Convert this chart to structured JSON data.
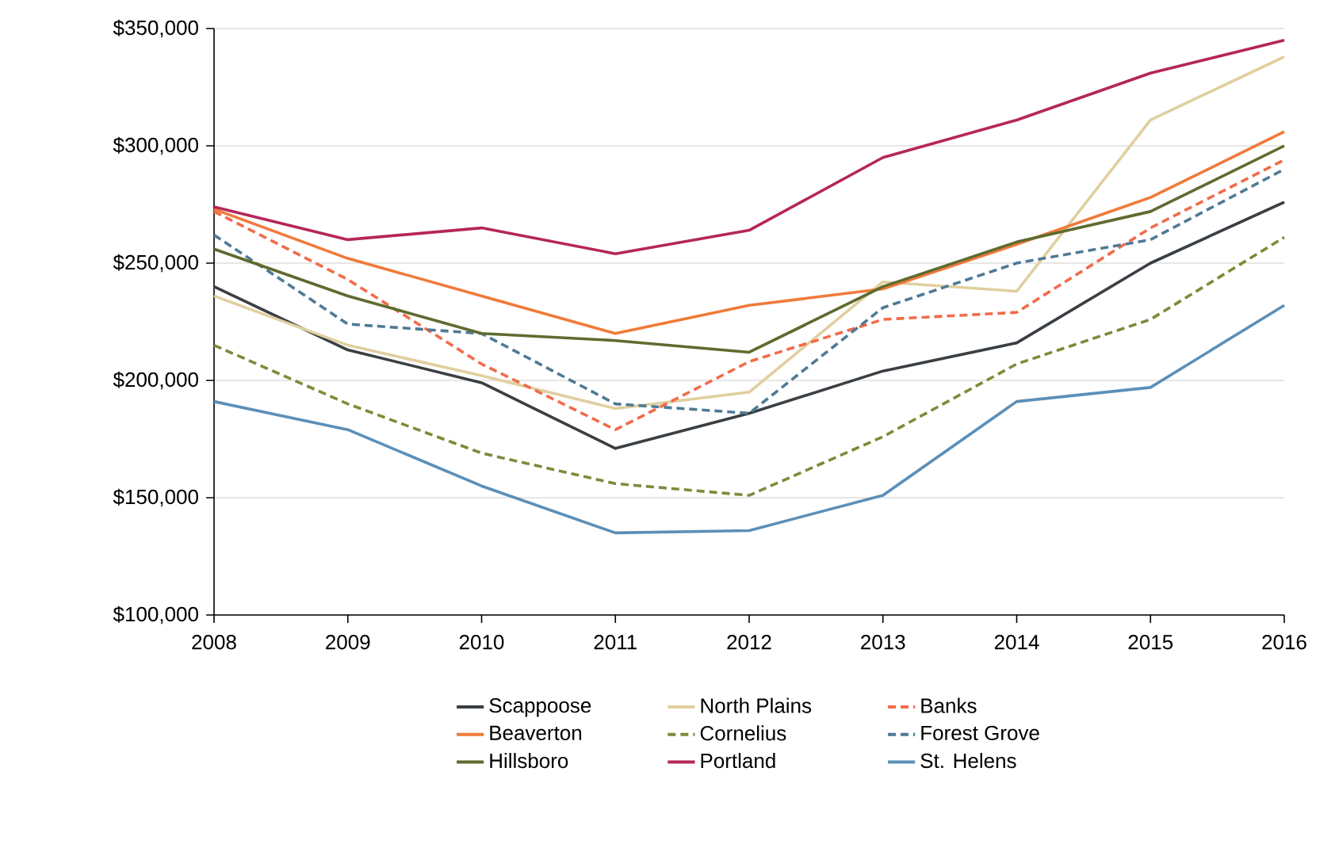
{
  "chart_data": {
    "type": "line",
    "x": [
      2008,
      2009,
      2010,
      2011,
      2012,
      2013,
      2014,
      2015,
      2016
    ],
    "xlim": [
      2008,
      2016
    ],
    "xticks": [
      2008,
      2009,
      2010,
      2011,
      2012,
      2013,
      2014,
      2015,
      2016
    ],
    "ylim": [
      100000,
      350000
    ],
    "yticks": [
      {
        "value": 100000,
        "label": "$100,000"
      },
      {
        "value": 150000,
        "label": "$150,000"
      },
      {
        "value": 200000,
        "label": "$200,000"
      },
      {
        "value": 250000,
        "label": "$250,000"
      },
      {
        "value": 300000,
        "label": "$300,000"
      },
      {
        "value": 350000,
        "label": "$350,000"
      }
    ],
    "grid": "y",
    "legend": "bottom",
    "marker": "none",
    "series": [
      {
        "name": "Scappoose",
        "color": "#3a3f44",
        "line_style": "solid",
        "values": [
          240000,
          213000,
          199000,
          171000,
          186000,
          204000,
          216000,
          250000,
          276000
        ]
      },
      {
        "name": "North Plains",
        "color": "#e0cf9f",
        "line_style": "solid",
        "values": [
          236000,
          215000,
          202000,
          188000,
          195000,
          242000,
          238000,
          311000,
          338000
        ]
      },
      {
        "name": "Banks",
        "color": "#f26b4a",
        "line_style": "dashed",
        "values": [
          272000,
          243000,
          207000,
          179000,
          208000,
          226000,
          229000,
          265000,
          294000
        ]
      },
      {
        "name": "Beaverton",
        "color": "#f07a3a",
        "line_style": "solid",
        "values": [
          273000,
          252000,
          236000,
          220000,
          232000,
          239000,
          258000,
          278000,
          306000
        ]
      },
      {
        "name": "Cornelius",
        "color": "#7f8a3a",
        "line_style": "dashed",
        "values": [
          215000,
          190000,
          169000,
          156000,
          151000,
          176000,
          207000,
          226000,
          261000
        ]
      },
      {
        "name": "Forest Grove",
        "color": "#4f7a95",
        "line_style": "dashed",
        "values": [
          262000,
          224000,
          220000,
          190000,
          186000,
          231000,
          250000,
          260000,
          290000
        ]
      },
      {
        "name": "Hillsboro",
        "color": "#5e6b2f",
        "line_style": "solid",
        "values": [
          256000,
          236000,
          220000,
          217000,
          212000,
          240000,
          259000,
          272000,
          300000
        ]
      },
      {
        "name": "Portland",
        "color": "#b5265a",
        "line_style": "solid",
        "values": [
          274000,
          260000,
          265000,
          254000,
          264000,
          295000,
          311000,
          331000,
          345000
        ]
      },
      {
        "name": "St. Helens",
        "color": "#5b8fb8",
        "line_style": "solid",
        "values": [
          191000,
          179000,
          155000,
          135000,
          136000,
          151000,
          191000,
          197000,
          232000
        ]
      }
    ]
  }
}
